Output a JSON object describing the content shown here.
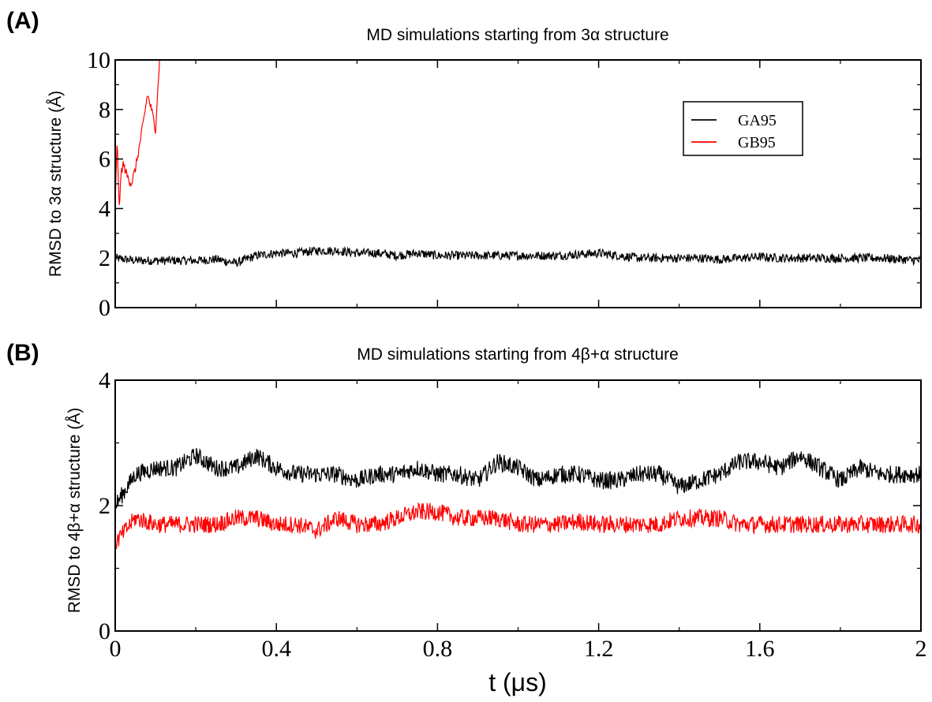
{
  "colors": {
    "GA95": "#000000",
    "GB95": "#ff0000",
    "axis": "#000000",
    "background": "#ffffff"
  },
  "chart_data": [
    {
      "panel": "(A)",
      "type": "line",
      "title": "MD simulations starting from 3α structure",
      "xlabel": "",
      "ylabel": "RMSD to 3α structure (Å)",
      "xlim": [
        0,
        2
      ],
      "ylim": [
        0,
        10
      ],
      "xticks": [
        0,
        0.4,
        0.8,
        1.2,
        1.6,
        2
      ],
      "yticks": [
        0,
        2,
        4,
        6,
        8,
        10
      ],
      "ytick_labels": [
        "0",
        "2",
        "4",
        "6",
        "8",
        "10"
      ],
      "xtick_labels_visible": false,
      "legend": {
        "position": "top-right",
        "entries": [
          "GA95",
          "GB95"
        ]
      },
      "series": [
        {
          "name": "GA95",
          "color": "#000000",
          "x": [
            0,
            0.05,
            0.1,
            0.15,
            0.2,
            0.25,
            0.3,
            0.35,
            0.4,
            0.45,
            0.5,
            0.55,
            0.6,
            0.65,
            0.7,
            0.75,
            0.8,
            0.85,
            0.9,
            0.95,
            1.0,
            1.05,
            1.1,
            1.15,
            1.2,
            1.25,
            1.3,
            1.35,
            1.4,
            1.45,
            1.5,
            1.55,
            1.6,
            1.65,
            1.7,
            1.75,
            1.8,
            1.85,
            1.9,
            1.95,
            2.0
          ],
          "y": [
            2.0,
            1.9,
            1.9,
            1.9,
            1.9,
            1.95,
            1.8,
            2.1,
            2.2,
            2.2,
            2.3,
            2.3,
            2.2,
            2.2,
            2.1,
            2.2,
            2.1,
            2.1,
            2.1,
            2.1,
            2.1,
            2.1,
            2.1,
            2.15,
            2.2,
            2.1,
            2.0,
            2.0,
            2.0,
            2.0,
            1.95,
            2.0,
            2.05,
            2.0,
            2.0,
            2.0,
            2.0,
            2.0,
            2.0,
            1.95,
            1.9
          ]
        },
        {
          "name": "GB95",
          "color": "#ff0000",
          "x": [
            0,
            0.005,
            0.01,
            0.015,
            0.02,
            0.03,
            0.04,
            0.05,
            0.06,
            0.07,
            0.08,
            0.09,
            0.1,
            0.11
          ],
          "y": [
            4.2,
            6.8,
            4.0,
            5.5,
            5.8,
            5.3,
            5.0,
            5.6,
            6.5,
            7.5,
            8.6,
            8.0,
            7.2,
            10.0
          ]
        }
      ]
    },
    {
      "panel": "(B)",
      "type": "line",
      "title": "MD simulations starting from 4β+α structure",
      "xlabel": "t (μs)",
      "ylabel": "RMSD to 4β+α structure (Å)",
      "xlim": [
        0,
        2
      ],
      "ylim": [
        0,
        4
      ],
      "xticks": [
        0,
        0.4,
        0.8,
        1.2,
        1.6,
        2
      ],
      "xtick_labels": [
        "0",
        "0.4",
        "0.8",
        "1.2",
        "1.6",
        "2"
      ],
      "yticks": [
        0,
        2,
        4
      ],
      "ytick_labels": [
        "0",
        "2",
        "4"
      ],
      "series": [
        {
          "name": "GA95",
          "color": "#000000",
          "x": [
            0,
            0.05,
            0.1,
            0.15,
            0.2,
            0.25,
            0.3,
            0.35,
            0.4,
            0.45,
            0.5,
            0.55,
            0.6,
            0.65,
            0.7,
            0.75,
            0.8,
            0.85,
            0.9,
            0.95,
            1.0,
            1.05,
            1.1,
            1.15,
            1.2,
            1.25,
            1.3,
            1.35,
            1.4,
            1.45,
            1.5,
            1.55,
            1.6,
            1.65,
            1.7,
            1.75,
            1.8,
            1.85,
            1.9,
            1.95,
            2.0
          ],
          "y": [
            2.0,
            2.5,
            2.6,
            2.6,
            2.8,
            2.6,
            2.6,
            2.8,
            2.6,
            2.5,
            2.5,
            2.5,
            2.4,
            2.5,
            2.5,
            2.6,
            2.5,
            2.5,
            2.4,
            2.7,
            2.6,
            2.4,
            2.5,
            2.5,
            2.4,
            2.4,
            2.5,
            2.5,
            2.3,
            2.4,
            2.5,
            2.7,
            2.7,
            2.6,
            2.8,
            2.6,
            2.4,
            2.6,
            2.5,
            2.5,
            2.5
          ]
        },
        {
          "name": "GB95",
          "color": "#ff0000",
          "x": [
            0,
            0.05,
            0.1,
            0.15,
            0.2,
            0.25,
            0.3,
            0.35,
            0.4,
            0.45,
            0.5,
            0.55,
            0.6,
            0.65,
            0.7,
            0.75,
            0.8,
            0.85,
            0.9,
            0.95,
            1.0,
            1.05,
            1.1,
            1.15,
            1.2,
            1.25,
            1.3,
            1.35,
            1.4,
            1.45,
            1.5,
            1.55,
            1.6,
            1.65,
            1.7,
            1.75,
            1.8,
            1.85,
            1.9,
            1.95,
            2.0
          ],
          "y": [
            1.4,
            1.8,
            1.7,
            1.7,
            1.7,
            1.7,
            1.8,
            1.8,
            1.7,
            1.7,
            1.6,
            1.8,
            1.7,
            1.7,
            1.8,
            1.9,
            1.9,
            1.8,
            1.8,
            1.8,
            1.7,
            1.7,
            1.7,
            1.75,
            1.7,
            1.7,
            1.7,
            1.7,
            1.8,
            1.8,
            1.8,
            1.7,
            1.7,
            1.7,
            1.7,
            1.7,
            1.7,
            1.7,
            1.7,
            1.7,
            1.7
          ]
        }
      ]
    }
  ]
}
